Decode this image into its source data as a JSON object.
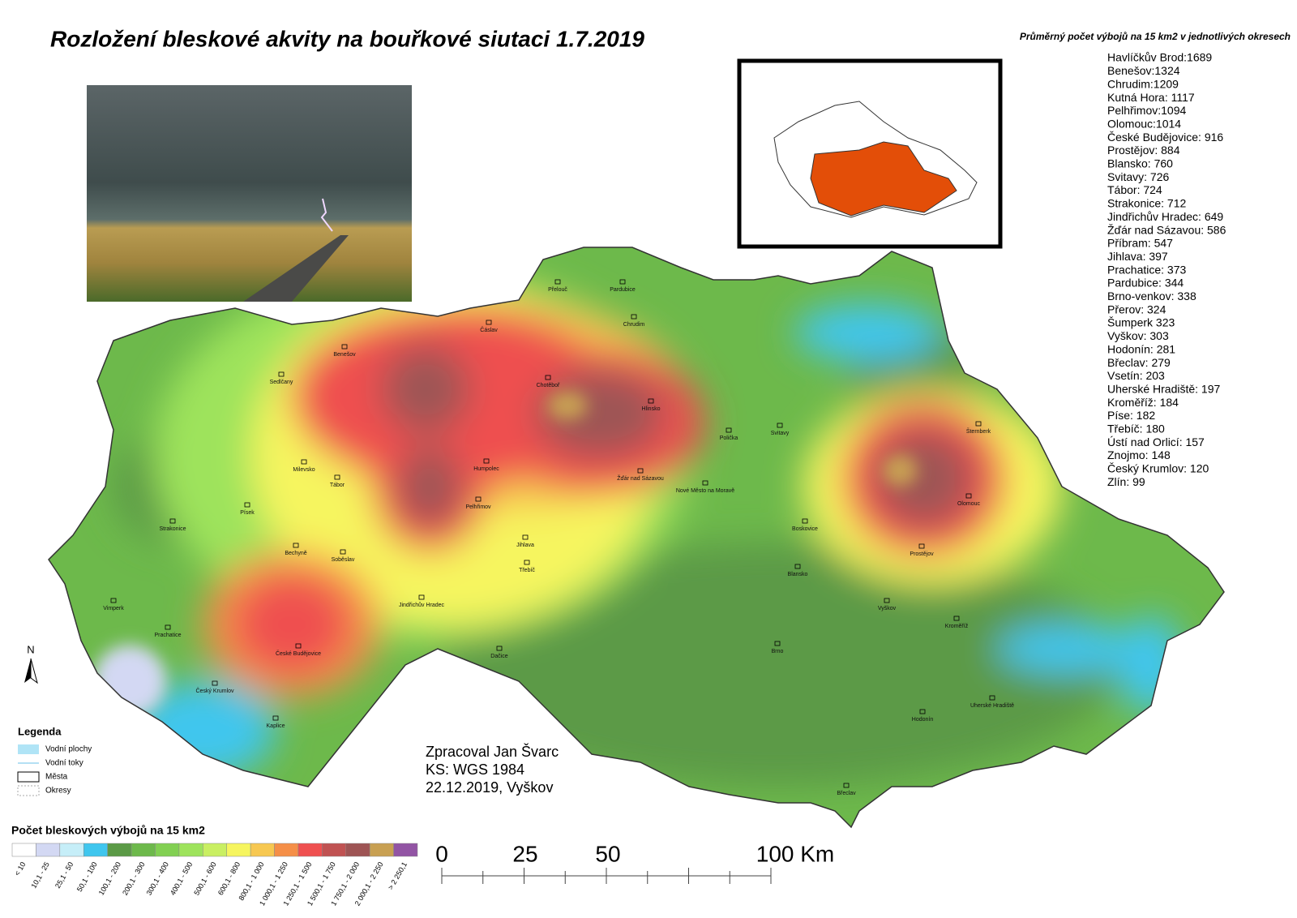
{
  "header": {
    "title": "Rozložení bleskové akvity na bouřkové siutaci 1.7.2019",
    "subtitle": "Průměrný počet výbojů na 15 km2 v jednotlivých okresech"
  },
  "districts": [
    "Havlíčkův Brod:1689",
    "Benešov:1324",
    "Chrudim:1209",
    "Kutná Hora: 1117",
    "Pelhřimov:1094",
    "Olomouc:1014",
    "České Budějovice: 916",
    "Prostějov: 884",
    "Blansko: 760",
    "Svitavy: 726",
    "Tábor: 724",
    "Strakonice: 712",
    "Jindřichův Hradec: 649",
    "Žďár nad Sázavou: 586",
    "Příbram: 547",
    "Jihlava: 397",
    "Prachatice: 373",
    "Pardubice: 344",
    "Brno-venkov: 338",
    "Přerov: 324",
    "Šumperk   323",
    "Vyškov: 303",
    "Hodonín: 281",
    "Břeclav: 279",
    "Vsetín: 203",
    "Uherské Hradiště: 197",
    "Kroměříž: 184",
    "Píse: 182",
    "Třebíč: 180",
    "Ústí nad Orlicí: 157",
    "Znojmo: 148",
    "Český Krumlov: 120",
    "Zlín: 99"
  ],
  "map_legend": {
    "title": "Legenda",
    "items": [
      "Vodní plochy",
      "Vodní toky",
      "Města",
      "Okresy"
    ]
  },
  "color_scale": {
    "title": "Počet bleskových výbojů na 15 km2",
    "classes": [
      {
        "label": "< 10",
        "color": "#ffffff"
      },
      {
        "label": "10,1 - 25",
        "color": "#d3d8f3"
      },
      {
        "label": "25,1 - 50",
        "color": "#c6eef8"
      },
      {
        "label": "50,1 - 100",
        "color": "#3fc6ee"
      },
      {
        "label": "100,1 - 200",
        "color": "#5b9a46"
      },
      {
        "label": "200,1 - 300",
        "color": "#6db94b"
      },
      {
        "label": "300,1 - 400",
        "color": "#82d052"
      },
      {
        "label": "400,1 - 500",
        "color": "#9ee35c"
      },
      {
        "label": "500,1 - 600",
        "color": "#c9ef62"
      },
      {
        "label": "600,1 - 800",
        "color": "#f6f55f"
      },
      {
        "label": "800,1 - 1 000",
        "color": "#f7c851"
      },
      {
        "label": "1 000,1 - 1 250",
        "color": "#f58f48"
      },
      {
        "label": "1 250,1 - 1 500",
        "color": "#ef5050"
      },
      {
        "label": "1 500,1 - 1 750",
        "color": "#c05252"
      },
      {
        "label": "1 750,1 - 2 000",
        "color": "#9e5454"
      },
      {
        "label": "2 000,1 - 2 250",
        "color": "#c8a052"
      },
      {
        "label": "> 2 250,1",
        "color": "#9254a4"
      }
    ]
  },
  "scale_bar": {
    "labels": [
      "0",
      "25",
      "50",
      "100 Km"
    ]
  },
  "north": "N",
  "credits": [
    "Zpracoval Jan Švarc",
    "KS: WGS 1984",
    "22.12.2019, Vyškov"
  ],
  "towns": [
    "Benešov",
    "Čáslav",
    "Chrudim",
    "Pardubice",
    "Přelouč",
    "Chotěboř",
    "Hlinsko",
    "Žďár nad Sázavou",
    "Humpolec",
    "Pelhřimov",
    "Tábor",
    "Milevsko",
    "Sedlčany",
    "Písek",
    "Strakonice",
    "Bechyně",
    "Soběslav",
    "České Budějovice",
    "Český Krumlov",
    "Kaplice",
    "Prachatice",
    "Vimperk",
    "Jindřichův Hradec",
    "Jihlava",
    "Třebíč",
    "Dačice",
    "Brno",
    "Boskovice",
    "Blansko",
    "Prostějov",
    "Olomouc",
    "Šternberk",
    "Kroměříž",
    "Vyškov",
    "Hodonín",
    "Břeclav",
    "Svitavy",
    "Polička",
    "Nové Město na Moravě",
    "Uherské Hradiště"
  ]
}
